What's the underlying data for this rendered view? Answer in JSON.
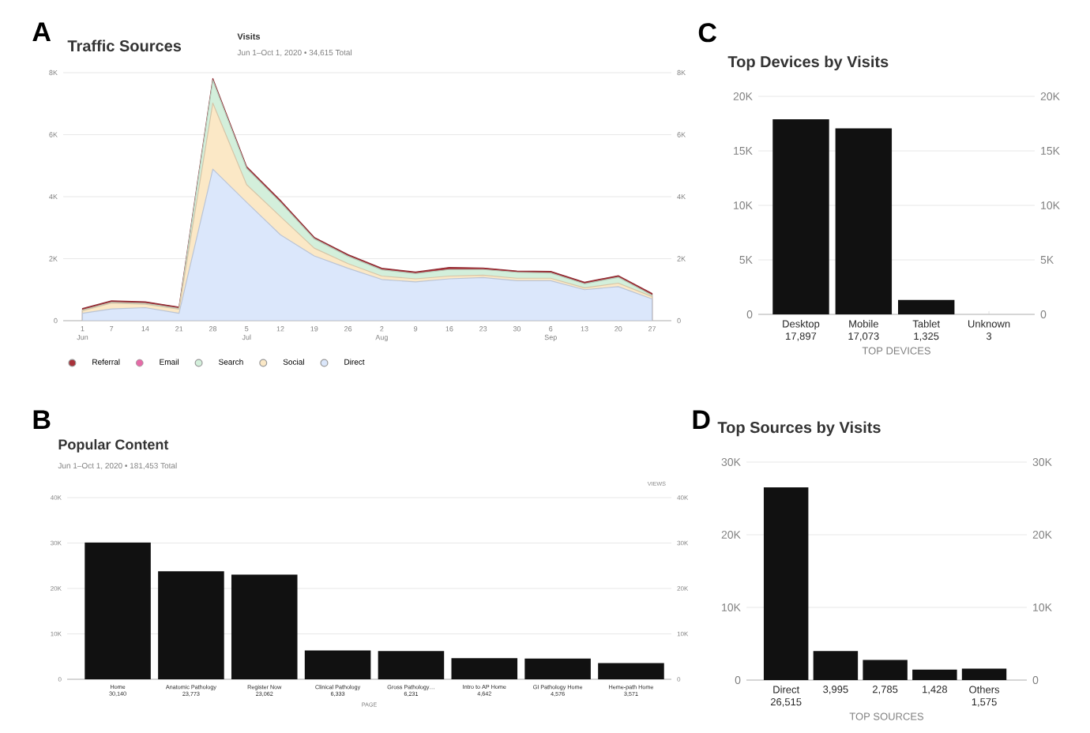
{
  "chart_data": [
    {
      "type": "area",
      "stacked": true,
      "title": "Traffic Sources",
      "subtitle": "Visits",
      "annotations": [
        "A",
        "Jun 1–Oct 1, 2020 • 34,615 Total"
      ],
      "x": [
        "2020-06-01",
        "2020-06-07",
        "2020-06-14",
        "2020-06-21",
        "2020-06-28",
        "2020-07-05",
        "2020-07-12",
        "2020-07-19",
        "2020-07-26",
        "2020-08-02",
        "2020-08-09",
        "2020-08-16",
        "2020-08-23",
        "2020-08-30",
        "2020-09-06",
        "2020-09-13",
        "2020-09-20",
        "2020-09-27"
      ],
      "series": [
        {
          "name": "Direct",
          "color": "#dbe7fb",
          "values": [
            240,
            380,
            420,
            240,
            4890,
            3820,
            2770,
            2090,
            1690,
            1330,
            1250,
            1350,
            1390,
            1290,
            1290,
            1000,
            1100,
            700
          ]
        },
        {
          "name": "Social",
          "color": "#fbe8c6",
          "values": [
            80,
            190,
            110,
            130,
            2130,
            570,
            590,
            250,
            150,
            110,
            100,
            90,
            80,
            80,
            80,
            60,
            110,
            80
          ]
        },
        {
          "name": "Search",
          "color": "#d3efdb",
          "values": [
            20,
            20,
            30,
            20,
            730,
            520,
            460,
            300,
            240,
            200,
            170,
            210,
            180,
            190,
            170,
            130,
            190,
            40
          ]
        },
        {
          "name": "Email",
          "color": "#e56ba7",
          "values": [
            null,
            null,
            null,
            null,
            null,
            null,
            null,
            null,
            null,
            null,
            null,
            null,
            null,
            null,
            null,
            null,
            null,
            null
          ]
        },
        {
          "name": "Referral",
          "color": "#a8323a",
          "values": [
            50,
            50,
            50,
            50,
            60,
            60,
            60,
            50,
            50,
            50,
            50,
            70,
            50,
            40,
            50,
            50,
            50,
            60
          ]
        }
      ],
      "xlim": [
        "2020-05-28",
        "2020-10-01"
      ],
      "xticks": [
        {
          "value": "2020-06-01",
          "label": "1 Jun"
        },
        {
          "value": "2020-06-07",
          "label": "7"
        },
        {
          "value": "2020-06-14",
          "label": "14"
        },
        {
          "value": "2020-06-21",
          "label": "21"
        },
        {
          "value": "2020-06-28",
          "label": "28"
        },
        {
          "value": "2020-07-05",
          "label": "5 Jul"
        },
        {
          "value": "2020-07-12",
          "label": "12"
        },
        {
          "value": "2020-07-19",
          "label": "19"
        },
        {
          "value": "2020-07-26",
          "label": "26"
        },
        {
          "value": "2020-08-02",
          "label": "2 Aug"
        },
        {
          "value": "2020-08-09",
          "label": "9"
        },
        {
          "value": "2020-08-16",
          "label": "16"
        },
        {
          "value": "2020-08-23",
          "label": "23"
        },
        {
          "value": "2020-08-30",
          "label": "30"
        },
        {
          "value": "2020-09-06",
          "label": "6 Sep"
        },
        {
          "value": "2020-09-13",
          "label": "13"
        },
        {
          "value": "2020-09-20",
          "label": "20"
        },
        {
          "value": "2020-09-27",
          "label": "27"
        }
      ],
      "ylim": [
        0,
        8000
      ],
      "yticks": [
        0,
        {
          "value": 2000,
          "label": "2K"
        },
        {
          "value": 4000,
          "label": "4K"
        },
        {
          "value": 6000,
          "label": "6K"
        },
        {
          "value": 8000,
          "label": "8K"
        }
      ],
      "y2lim": [
        0,
        8000
      ],
      "y2ticks": [
        0,
        {
          "value": 2000,
          "label": "2K"
        },
        {
          "value": 4000,
          "label": "4K"
        },
        {
          "value": 6000,
          "label": "6K"
        },
        {
          "value": 8000,
          "label": "8K"
        }
      ],
      "grid": "y",
      "legend": "bottom"
    },
    {
      "type": "bar",
      "title": "Popular Content",
      "subtitle": "Jun 1–Oct 1, 2020 • 181,453 Total",
      "annotations": [
        "B"
      ],
      "xlabel": "PAGE",
      "y2label": "VIEWS",
      "categories": [
        "Home",
        "Anatomic Pathology",
        "Register Now",
        "Clinical Pathology",
        "Gross Pathology…",
        "Intro to AP Home",
        "GI Pathology Home",
        "Heme-path Home"
      ],
      "values": [
        30140,
        23773,
        23062,
        6333,
        6231,
        4642,
        4576,
        3571
      ],
      "value_labels": [
        "30,140",
        "23,773",
        "23,062",
        "6,333",
        "6,231",
        "4,642",
        "4,576",
        "3,571"
      ],
      "color": "#111111",
      "ylim": [
        0,
        40000
      ],
      "yticks": [
        0,
        {
          "value": 10000,
          "label": "10K"
        },
        {
          "value": 20000,
          "label": "20K"
        },
        {
          "value": 30000,
          "label": "30K"
        },
        {
          "value": 40000,
          "label": "40K"
        }
      ],
      "y2lim": [
        0,
        40000
      ],
      "y2ticks": [
        0,
        {
          "value": 10000,
          "label": "10K"
        },
        {
          "value": 20000,
          "label": "20K"
        },
        {
          "value": 30000,
          "label": "30K"
        },
        {
          "value": 40000,
          "label": "40K"
        }
      ],
      "grid": "y"
    },
    {
      "type": "bar",
      "title": "Top Devices by Visits",
      "annotations": [
        "C"
      ],
      "xlabel": "TOP DEVICES",
      "categories": [
        "Desktop",
        "Mobile",
        "Tablet",
        "Unknown"
      ],
      "values": [
        17897,
        17073,
        1325,
        3
      ],
      "value_labels": [
        "17,897",
        "17,073",
        "1,325",
        "3"
      ],
      "color": "#111111",
      "ylim": [
        0,
        20000
      ],
      "yticks": [
        0,
        {
          "value": 5000,
          "label": "5K"
        },
        {
          "value": 10000,
          "label": "10K"
        },
        {
          "value": 15000,
          "label": "15K"
        },
        {
          "value": 20000,
          "label": "20K"
        }
      ],
      "y2lim": [
        0,
        20000
      ],
      "y2ticks": [
        0,
        {
          "value": 5000,
          "label": "5K"
        },
        {
          "value": 10000,
          "label": "10K"
        },
        {
          "value": 15000,
          "label": "15K"
        },
        {
          "value": 20000,
          "label": "20K"
        }
      ],
      "grid": "y"
    },
    {
      "type": "bar",
      "title": "Top Sources by Visits",
      "annotations": [
        "D"
      ],
      "xlabel": "TOP SOURCES",
      "categories": [
        "Direct",
        null,
        null,
        null,
        "Others"
      ],
      "values": [
        26515,
        3995,
        2785,
        1428,
        1575
      ],
      "value_labels": [
        "26,515",
        "3,995",
        "2,785",
        "1,428",
        "1,575"
      ],
      "color": "#111111",
      "ylim": [
        0,
        30000
      ],
      "yticks": [
        0,
        {
          "value": 10000,
          "label": "10K"
        },
        {
          "value": 20000,
          "label": "20K"
        },
        {
          "value": 30000,
          "label": "30K"
        }
      ],
      "y2lim": [
        0,
        30000
      ],
      "y2ticks": [
        0,
        {
          "value": 10000,
          "label": "10K"
        },
        {
          "value": 20000,
          "label": "20K"
        },
        {
          "value": 30000,
          "label": "30K"
        }
      ],
      "grid": "y"
    }
  ]
}
